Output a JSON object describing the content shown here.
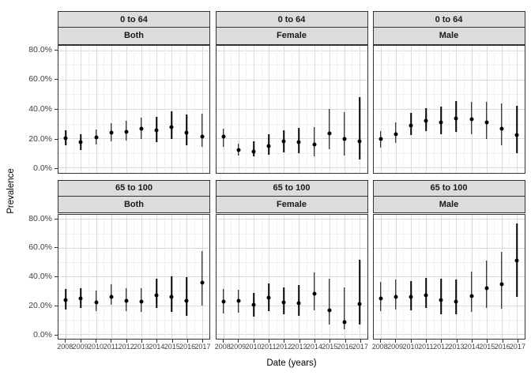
{
  "figure": {
    "y_axis_title": "Prevalence",
    "x_axis_title": "Date (years)"
  },
  "chart_data": {
    "type": "scatter",
    "subtype": "pointrange-with-error-bars",
    "title": "",
    "xlabel": "Date (years)",
    "ylabel": "Prevalence",
    "grid": true,
    "legend": false,
    "ylim_percent": [
      0,
      83
    ],
    "y_ticks": [
      {
        "value": 80,
        "label": "80.0%"
      },
      {
        "value": 60,
        "label": "60.0%"
      },
      {
        "value": 40,
        "label": "40.0%"
      },
      {
        "value": 20,
        "label": "20.0%"
      },
      {
        "value": 0,
        "label": "0.0%"
      }
    ],
    "y_minor_ticks": [
      70,
      50,
      30,
      10
    ],
    "x": [
      2008,
      2009,
      2010,
      2011,
      2012,
      2013,
      2014,
      2015,
      2016,
      2017
    ],
    "x_tick_labels": [
      "2008",
      "2009",
      "2010",
      "2011",
      "2012",
      "2013",
      "2014",
      "2015",
      "2016",
      "2017"
    ],
    "facet_rows": [
      "0 to 64",
      "65 to 100"
    ],
    "facet_cols": [
      "Both",
      "Female",
      "Male"
    ],
    "panels": [
      {
        "age_group": "0 to 64",
        "sex": "Both",
        "values_percent": [
          20.3,
          17.4,
          20.9,
          23.7,
          24.3,
          26.4,
          25.5,
          27.8,
          23.7,
          21.3
        ],
        "ci_low_percent": [
          15.0,
          12.2,
          15.8,
          17.9,
          18.4,
          19.7,
          17.5,
          19.3,
          15.5,
          14.0
        ],
        "ci_high_percent": [
          25.3,
          22.9,
          25.9,
          30.3,
          32.1,
          33.9,
          34.4,
          38.4,
          36.1,
          36.8
        ]
      },
      {
        "age_group": "0 to 64",
        "sex": "Female",
        "values_percent": [
          21.2,
          12.0,
          10.9,
          14.5,
          17.9,
          17.3,
          15.9,
          23.3,
          19.4,
          18.0
        ],
        "ci_low_percent": [
          14.1,
          8.0,
          8.0,
          8.8,
          10.4,
          10.1,
          7.5,
          12.4,
          8.4,
          5.5
        ],
        "ci_high_percent": [
          26.5,
          16.2,
          17.7,
          23.0,
          25.6,
          26.9,
          27.5,
          39.8,
          38.0,
          48.0
        ]
      },
      {
        "age_group": "0 to 64",
        "sex": "Male",
        "values_percent": [
          19.4,
          23.0,
          28.6,
          31.8,
          30.6,
          33.6,
          32.9,
          30.9,
          26.8,
          22.1
        ],
        "ci_low_percent": [
          13.8,
          16.8,
          22.1,
          25.1,
          23.0,
          24.4,
          22.6,
          19.4,
          15.0,
          10.1
        ],
        "ci_high_percent": [
          24.7,
          30.9,
          37.1,
          40.3,
          41.5,
          45.6,
          45.1,
          45.1,
          43.8,
          42.4
        ]
      },
      {
        "age_group": "65 to 100",
        "sex": "Both",
        "values_percent": [
          23.4,
          24.8,
          22.2,
          26.0,
          22.9,
          22.3,
          27.1,
          25.7,
          23.0,
          35.8
        ],
        "ci_low_percent": [
          17.3,
          18.0,
          16.1,
          20.1,
          15.7,
          15.2,
          18.3,
          15.5,
          12.6,
          19.9
        ],
        "ci_high_percent": [
          31.3,
          32.1,
          30.0,
          34.7,
          31.8,
          31.8,
          38.4,
          40.0,
          39.6,
          58.0
        ]
      },
      {
        "age_group": "65 to 100",
        "sex": "Female",
        "values_percent": [
          22.5,
          23.0,
          20.1,
          25.1,
          22.2,
          21.6,
          27.8,
          16.6,
          8.2,
          20.8
        ],
        "ci_low_percent": [
          14.5,
          15.0,
          12.0,
          16.1,
          13.5,
          12.6,
          16.4,
          6.4,
          3.3,
          6.8
        ],
        "ci_high_percent": [
          31.5,
          31.0,
          28.5,
          35.0,
          32.5,
          34.0,
          43.0,
          38.7,
          32.6,
          51.5
        ]
      },
      {
        "age_group": "65 to 100",
        "sex": "Male",
        "values_percent": [
          24.8,
          26.0,
          25.7,
          26.9,
          23.4,
          22.7,
          26.5,
          31.8,
          34.4,
          51.3
        ],
        "ci_low_percent": [
          16.1,
          16.9,
          16.6,
          18.2,
          14.0,
          13.5,
          15.5,
          18.2,
          17.4,
          25.7
        ],
        "ci_high_percent": [
          36.1,
          37.9,
          37.0,
          39.3,
          38.7,
          37.9,
          43.5,
          50.9,
          57.4,
          77.1
        ]
      }
    ]
  }
}
